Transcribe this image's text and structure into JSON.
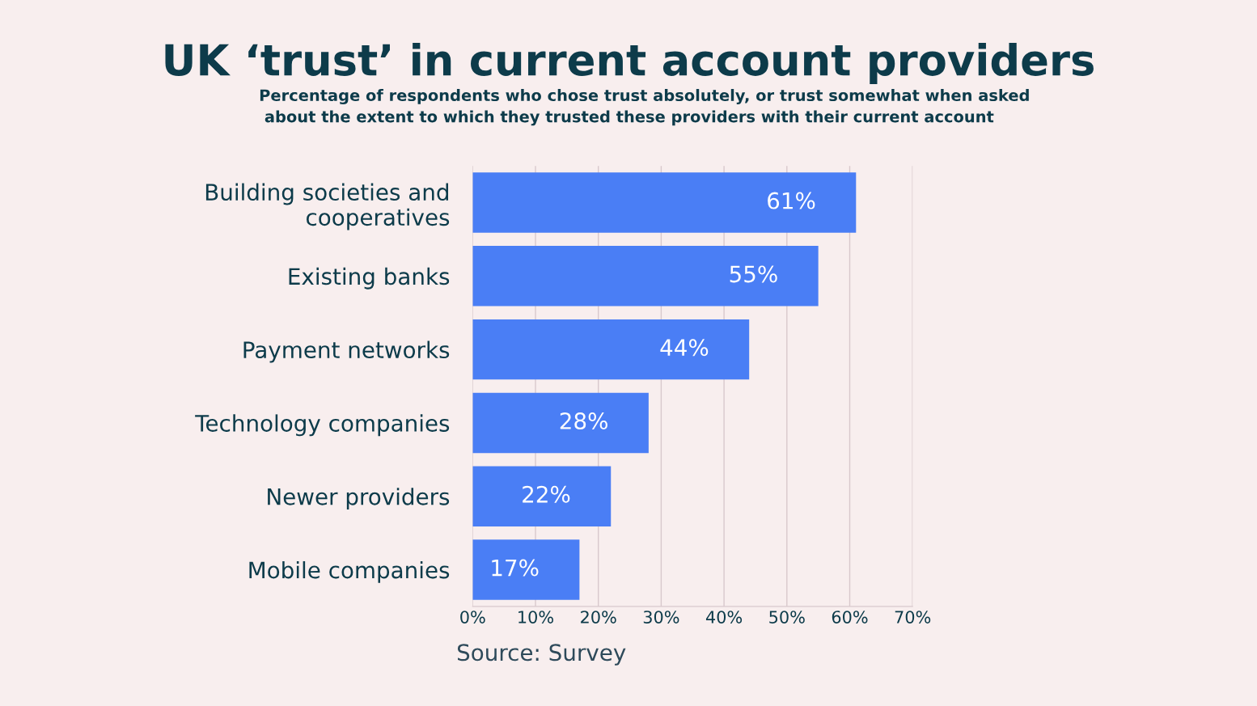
{
  "chart_data": {
    "type": "bar",
    "orientation": "horizontal",
    "title": "UK ‘trust’ in current account providers",
    "subtitle": "Percentage of respondents who chose trust absolutely, or trust somewhat when asked\n about the extent to which they trusted these providers with their current account",
    "categories": [
      "Building societies and\ncooperatives",
      "Existing banks",
      "Payment networks",
      "Technology companies",
      "Newer providers",
      "Mobile companies"
    ],
    "values": [
      61,
      55,
      44,
      28,
      22,
      17
    ],
    "value_labels": [
      "61%",
      "55%",
      "44%",
      "28%",
      "22%",
      "17%"
    ],
    "color": "#4a7ef5",
    "xlim": [
      0,
      70
    ],
    "xticks": [
      {
        "value": 0,
        "label": "0%"
      },
      {
        "value": 10,
        "label": "10%"
      },
      {
        "value": 20,
        "label": "20%"
      },
      {
        "value": 30,
        "label": "30%"
      },
      {
        "value": 40,
        "label": "40%"
      },
      {
        "value": 50,
        "label": "50%"
      },
      {
        "value": 60,
        "label": "60%"
      },
      {
        "value": 70,
        "label": "70%"
      }
    ],
    "grid": "x",
    "annotations": [
      "Source: Survey"
    ]
  }
}
